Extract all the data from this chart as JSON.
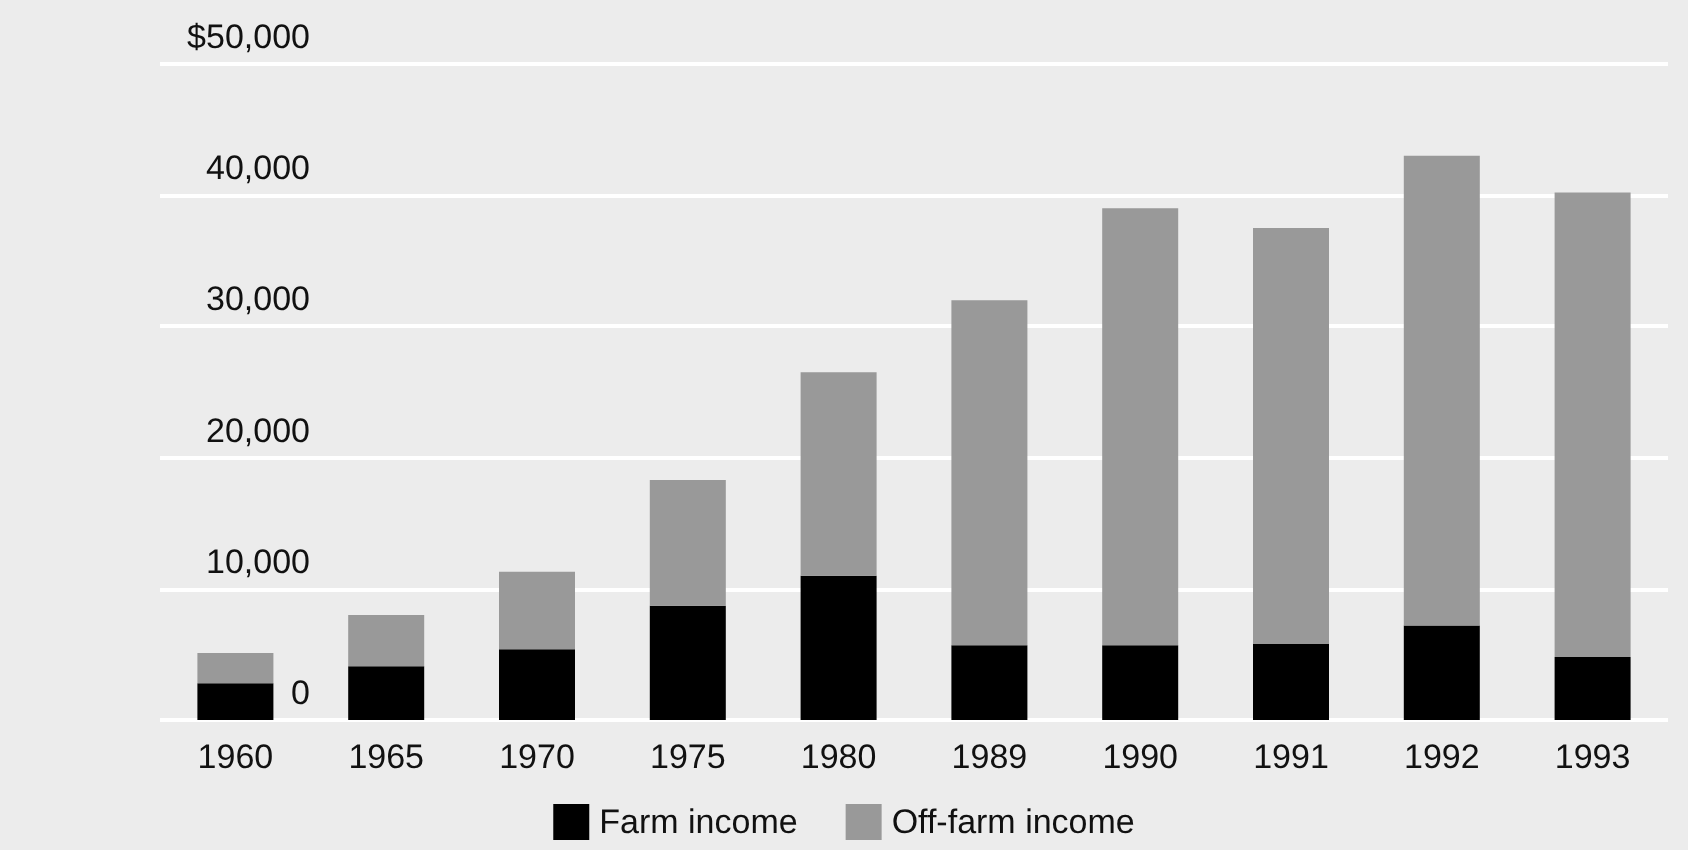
{
  "chart_data": {
    "type": "bar",
    "stacked": true,
    "categories": [
      "1960",
      "1965",
      "1970",
      "1975",
      "1980",
      "1989",
      "1990",
      "1991",
      "1992",
      "1993"
    ],
    "series": [
      {
        "name": "Farm income",
        "color": "#000000",
        "values": [
          2800,
          4100,
          5400,
          8700,
          11000,
          5700,
          5700,
          5800,
          7200,
          4800
        ]
      },
      {
        "name": "Off-farm income",
        "color": "#999999",
        "values": [
          2300,
          3900,
          5900,
          9600,
          15500,
          26300,
          33300,
          31700,
          35800,
          35400
        ]
      }
    ],
    "ylim": [
      0,
      50000
    ],
    "yticks": [
      0,
      {
        "value": 10000,
        "label": "10,000"
      },
      {
        "value": 20000,
        "label": "20,000"
      },
      {
        "value": 30000,
        "label": "30,000"
      },
      {
        "value": 40000,
        "label": "40,000"
      },
      {
        "value": 50000,
        "label": "$50,000"
      }
    ],
    "grid": "y",
    "legend": "bottom"
  }
}
